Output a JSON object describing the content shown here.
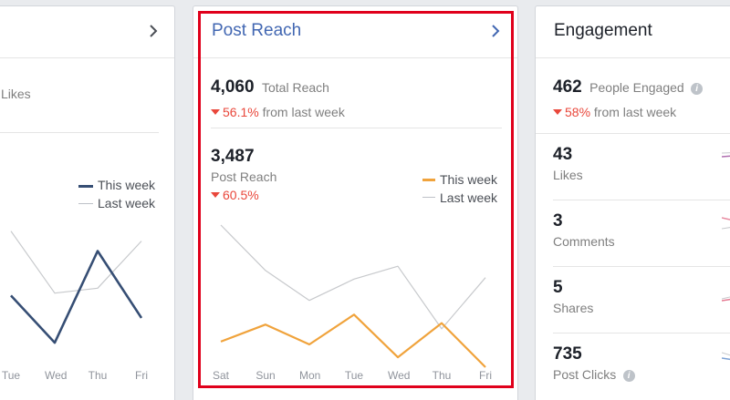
{
  "left_card": {
    "likes_label": "Likes",
    "legend": {
      "this_week": "This week",
      "last_week": "Last week"
    },
    "days": [
      "Tue",
      "Wed",
      "Thu",
      "Fri"
    ],
    "colors": {
      "this_week": "#364e74",
      "last_week": "#c7c9cc"
    }
  },
  "post_reach": {
    "title": "Post Reach",
    "total_reach": {
      "value": "4,060",
      "label": "Total Reach",
      "change": "56.1%",
      "suffix": "from last week"
    },
    "post_reach": {
      "value": "3,487",
      "label": "Post Reach",
      "change": "60.5%"
    },
    "legend": {
      "this_week": "This week",
      "last_week": "Last week"
    },
    "days": [
      "Sat",
      "Sun",
      "Mon",
      "Tue",
      "Wed",
      "Thu",
      "Fri"
    ],
    "colors": {
      "title": "#4267b2",
      "this_week": "#f0a33c",
      "last_week": "#c7c9cc",
      "highlight": "#e0001b"
    }
  },
  "engagement": {
    "title": "Engagement",
    "people_engaged": {
      "value": "462",
      "label": "People Engaged",
      "change": "58%",
      "suffix": "from last week"
    },
    "rows": [
      {
        "value": "43",
        "label": "Likes"
      },
      {
        "value": "3",
        "label": "Comments"
      },
      {
        "value": "5",
        "label": "Shares"
      },
      {
        "value": "735",
        "label": "Post Clicks"
      }
    ]
  },
  "chart_data": [
    {
      "type": "line",
      "x": [
        "Sat",
        "Sun",
        "Mon",
        "Tue",
        "Wed",
        "Thu",
        "Fri"
      ],
      "series": [
        {
          "name": "This week",
          "values": [
            0.18,
            0.3,
            0.16,
            0.37,
            0.07,
            0.31,
            0.0
          ]
        },
        {
          "name": "Last week",
          "values": [
            1.0,
            0.68,
            0.47,
            0.62,
            0.71,
            0.27,
            0.63
          ]
        }
      ],
      "ylim": [
        0,
        1
      ],
      "grid": false,
      "legend": "top-right"
    },
    {
      "type": "line",
      "x": [
        "Tue",
        "Wed",
        "Thu",
        "Fri"
      ],
      "series": [
        {
          "name": "This week",
          "values": [
            0.46,
            0.08,
            0.82,
            0.28
          ]
        },
        {
          "name": "Last week",
          "values": [
            0.98,
            0.48,
            0.52,
            0.9
          ]
        }
      ],
      "ylim": [
        0,
        1
      ],
      "grid": false,
      "legend": "top-right"
    }
  ]
}
